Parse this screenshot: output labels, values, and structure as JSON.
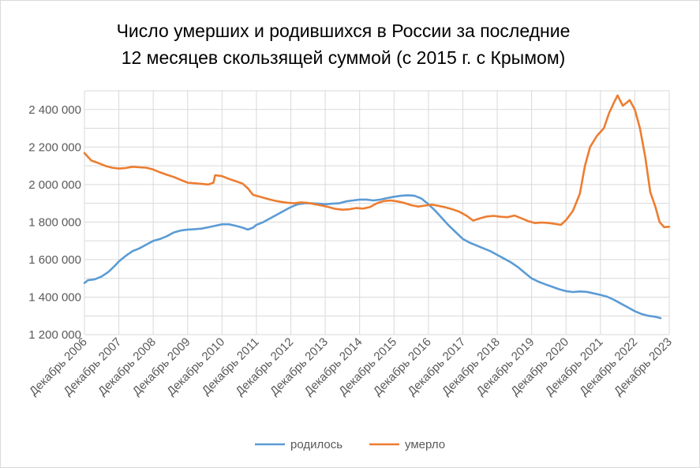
{
  "chart_data": {
    "type": "line",
    "title_line1": "Число умерших и родившихся в России за последние",
    "title_line2": "12 месяцев скользящей суммой (с 2015 г. с Крымом)",
    "xlabel": "",
    "ylabel": "",
    "ylim": [
      1200000,
      2500000
    ],
    "grid": true,
    "legend_position": "bottom",
    "y_ticks": [
      {
        "value": 1200000,
        "label": "1 200 000"
      },
      {
        "value": 1400000,
        "label": "1 400 000"
      },
      {
        "value": 1600000,
        "label": "1 600 000"
      },
      {
        "value": 1800000,
        "label": "1 800 000"
      },
      {
        "value": 2000000,
        "label": "2 000 000"
      },
      {
        "value": 2200000,
        "label": "2 200 000"
      },
      {
        "value": 2400000,
        "label": "2 400 000"
      }
    ],
    "x_ticks": [
      "Декабрь 2006",
      "Декабрь 2007",
      "Декабрь 2008",
      "Декабрь 2009",
      "Декабрь 2010",
      "Декабрь 2011",
      "Декабрь 2012",
      "Декабрь 2013",
      "Декабрь 2014",
      "Декабрь 2015",
      "Декабрь 2016",
      "Декабрь 2017",
      "Декабрь 2018",
      "Декабрь 2019",
      "Декабрь 2020",
      "Декабрь 2021",
      "Декабрь 2022",
      "Декабрь 2023"
    ],
    "x_unit": "years since Декабрь 2006",
    "series": [
      {
        "name": "родилось",
        "color": "#5b9bd5",
        "points": [
          [
            0,
            1475000
          ],
          [
            0.1,
            1490000
          ],
          [
            0.3,
            1495000
          ],
          [
            0.5,
            1510000
          ],
          [
            0.7,
            1535000
          ],
          [
            0.9,
            1570000
          ],
          [
            1.0,
            1590000
          ],
          [
            1.2,
            1620000
          ],
          [
            1.4,
            1645000
          ],
          [
            1.6,
            1660000
          ],
          [
            1.8,
            1680000
          ],
          [
            2.0,
            1700000
          ],
          [
            2.2,
            1710000
          ],
          [
            2.4,
            1725000
          ],
          [
            2.6,
            1745000
          ],
          [
            2.8,
            1755000
          ],
          [
            3.0,
            1760000
          ],
          [
            3.2,
            1762000
          ],
          [
            3.4,
            1765000
          ],
          [
            3.6,
            1772000
          ],
          [
            3.8,
            1780000
          ],
          [
            4.0,
            1788000
          ],
          [
            4.2,
            1788000
          ],
          [
            4.4,
            1780000
          ],
          [
            4.6,
            1770000
          ],
          [
            4.75,
            1760000
          ],
          [
            4.9,
            1770000
          ],
          [
            5.0,
            1785000
          ],
          [
            5.2,
            1800000
          ],
          [
            5.4,
            1820000
          ],
          [
            5.6,
            1840000
          ],
          [
            5.8,
            1860000
          ],
          [
            6.0,
            1880000
          ],
          [
            6.2,
            1895000
          ],
          [
            6.4,
            1900000
          ],
          [
            6.6,
            1900000
          ],
          [
            6.8,
            1898000
          ],
          [
            7.0,
            1895000
          ],
          [
            7.2,
            1898000
          ],
          [
            7.4,
            1900000
          ],
          [
            7.6,
            1910000
          ],
          [
            7.8,
            1915000
          ],
          [
            8.0,
            1920000
          ],
          [
            8.2,
            1920000
          ],
          [
            8.4,
            1915000
          ],
          [
            8.6,
            1920000
          ],
          [
            8.8,
            1928000
          ],
          [
            9.0,
            1935000
          ],
          [
            9.2,
            1940000
          ],
          [
            9.4,
            1943000
          ],
          [
            9.6,
            1940000
          ],
          [
            9.8,
            1925000
          ],
          [
            10.0,
            1895000
          ],
          [
            10.2,
            1860000
          ],
          [
            10.4,
            1820000
          ],
          [
            10.6,
            1780000
          ],
          [
            10.8,
            1745000
          ],
          [
            11.0,
            1710000
          ],
          [
            11.2,
            1690000
          ],
          [
            11.4,
            1675000
          ],
          [
            11.6,
            1660000
          ],
          [
            11.8,
            1645000
          ],
          [
            12.0,
            1625000
          ],
          [
            12.2,
            1605000
          ],
          [
            12.4,
            1585000
          ],
          [
            12.6,
            1560000
          ],
          [
            12.8,
            1530000
          ],
          [
            13.0,
            1500000
          ],
          [
            13.2,
            1482000
          ],
          [
            13.4,
            1468000
          ],
          [
            13.6,
            1455000
          ],
          [
            13.8,
            1442000
          ],
          [
            14.0,
            1432000
          ],
          [
            14.2,
            1427000
          ],
          [
            14.4,
            1430000
          ],
          [
            14.6,
            1428000
          ],
          [
            14.8,
            1420000
          ],
          [
            15.0,
            1412000
          ],
          [
            15.2,
            1402000
          ],
          [
            15.4,
            1385000
          ],
          [
            15.6,
            1365000
          ],
          [
            15.8,
            1345000
          ],
          [
            16.0,
            1325000
          ],
          [
            16.2,
            1310000
          ],
          [
            16.4,
            1300000
          ],
          [
            16.6,
            1295000
          ],
          [
            16.75,
            1288000
          ]
        ]
      },
      {
        "name": "умерло",
        "color": "#ed7d31",
        "points": [
          [
            0,
            2168000
          ],
          [
            0.1,
            2148000
          ],
          [
            0.2,
            2128000
          ],
          [
            0.4,
            2115000
          ],
          [
            0.6,
            2100000
          ],
          [
            0.8,
            2090000
          ],
          [
            1.0,
            2085000
          ],
          [
            1.2,
            2088000
          ],
          [
            1.4,
            2095000
          ],
          [
            1.6,
            2092000
          ],
          [
            1.8,
            2090000
          ],
          [
            2.0,
            2080000
          ],
          [
            2.2,
            2065000
          ],
          [
            2.4,
            2052000
          ],
          [
            2.6,
            2040000
          ],
          [
            2.8,
            2025000
          ],
          [
            3.0,
            2010000
          ],
          [
            3.2,
            2007000
          ],
          [
            3.4,
            2004000
          ],
          [
            3.6,
            2000000
          ],
          [
            3.75,
            2010000
          ],
          [
            3.8,
            2050000
          ],
          [
            4.0,
            2045000
          ],
          [
            4.2,
            2030000
          ],
          [
            4.4,
            2018000
          ],
          [
            4.6,
            2005000
          ],
          [
            4.75,
            1980000
          ],
          [
            4.9,
            1945000
          ],
          [
            5.1,
            1935000
          ],
          [
            5.3,
            1925000
          ],
          [
            5.5,
            1915000
          ],
          [
            5.7,
            1908000
          ],
          [
            5.9,
            1903000
          ],
          [
            6.1,
            1900000
          ],
          [
            6.3,
            1905000
          ],
          [
            6.5,
            1902000
          ],
          [
            6.7,
            1895000
          ],
          [
            6.9,
            1888000
          ],
          [
            7.1,
            1880000
          ],
          [
            7.3,
            1870000
          ],
          [
            7.5,
            1866000
          ],
          [
            7.7,
            1868000
          ],
          [
            7.9,
            1875000
          ],
          [
            8.1,
            1872000
          ],
          [
            8.3,
            1880000
          ],
          [
            8.5,
            1900000
          ],
          [
            8.7,
            1912000
          ],
          [
            8.9,
            1915000
          ],
          [
            9.1,
            1910000
          ],
          [
            9.3,
            1902000
          ],
          [
            9.5,
            1890000
          ],
          [
            9.7,
            1883000
          ],
          [
            9.9,
            1888000
          ],
          [
            10.1,
            1893000
          ],
          [
            10.3,
            1886000
          ],
          [
            10.5,
            1878000
          ],
          [
            10.7,
            1868000
          ],
          [
            10.9,
            1855000
          ],
          [
            11.1,
            1835000
          ],
          [
            11.3,
            1808000
          ],
          [
            11.5,
            1820000
          ],
          [
            11.7,
            1830000
          ],
          [
            11.9,
            1833000
          ],
          [
            12.1,
            1828000
          ],
          [
            12.3,
            1826000
          ],
          [
            12.5,
            1835000
          ],
          [
            12.7,
            1820000
          ],
          [
            12.9,
            1805000
          ],
          [
            13.1,
            1795000
          ],
          [
            13.3,
            1798000
          ],
          [
            13.5,
            1795000
          ],
          [
            13.7,
            1790000
          ],
          [
            13.85,
            1785000
          ],
          [
            14.0,
            1810000
          ],
          [
            14.2,
            1860000
          ],
          [
            14.4,
            1950000
          ],
          [
            14.55,
            2100000
          ],
          [
            14.7,
            2200000
          ],
          [
            14.9,
            2260000
          ],
          [
            15.1,
            2300000
          ],
          [
            15.25,
            2380000
          ],
          [
            15.4,
            2440000
          ],
          [
            15.5,
            2475000
          ],
          [
            15.65,
            2420000
          ],
          [
            15.85,
            2450000
          ],
          [
            16.0,
            2400000
          ],
          [
            16.15,
            2300000
          ],
          [
            16.3,
            2150000
          ],
          [
            16.45,
            1960000
          ],
          [
            16.6,
            1880000
          ],
          [
            16.72,
            1800000
          ],
          [
            16.85,
            1773000
          ],
          [
            17.0,
            1775000
          ]
        ]
      }
    ]
  }
}
